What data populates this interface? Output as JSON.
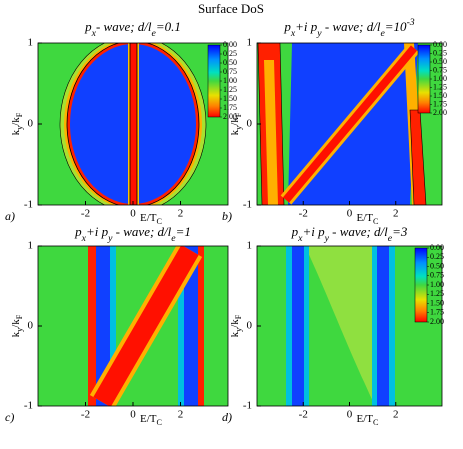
{
  "title": "Surface DoS",
  "panels": [
    {
      "label": "a)",
      "title": [
        {
          "text": "p"
        },
        {
          "text": "x",
          "shift": "sub"
        },
        {
          "text": "- wave; d/l"
        },
        {
          "text": "e",
          "shift": "sub"
        },
        {
          "text": "=0.1"
        }
      ],
      "xlabel": [
        {
          "text": "E/T"
        },
        {
          "text": "C",
          "shift": "sub"
        }
      ],
      "ylabel": [
        {
          "text": "k"
        },
        {
          "text": "y",
          "shift": "sub"
        },
        {
          "text": "/k"
        },
        {
          "text": "F",
          "shift": "sub"
        }
      ],
      "xlim": [
        -4,
        4
      ],
      "ylim": [
        -1,
        1
      ],
      "xticks": [
        -2,
        0,
        2
      ],
      "yticks": [
        -1,
        0,
        1
      ],
      "colorbar": {
        "lim": [
          0,
          2
        ],
        "ticks": [
          {
            "value": 0,
            "label": "0.00"
          },
          {
            "value": 0.25,
            "label": "0.25"
          },
          {
            "value": 0.5,
            "label": "0.50"
          },
          {
            "value": 0.75,
            "label": "0.75"
          },
          {
            "value": 1,
            "label": "1.00"
          },
          {
            "value": 1.25,
            "label": "1.25"
          },
          {
            "value": 1.5,
            "label": "1.50"
          },
          {
            "value": 1.75,
            "label": "1.75"
          },
          {
            "value": 2,
            "label": "2.00"
          }
        ]
      }
    },
    {
      "label": "b)",
      "title": [
        {
          "text": "p"
        },
        {
          "text": "x",
          "shift": "sub"
        },
        {
          "text": "+i p"
        },
        {
          "text": "y",
          "shift": "sub"
        },
        {
          "text": " - wave; d/l"
        },
        {
          "text": "e",
          "shift": "sub"
        },
        {
          "text": "=10"
        },
        {
          "text": "-3",
          "shift": "super"
        }
      ],
      "xlabel": [
        {
          "text": "E/T"
        },
        {
          "text": "C",
          "shift": "sub"
        }
      ],
      "ylabel": [
        {
          "text": "k"
        },
        {
          "text": "y",
          "shift": "sub"
        },
        {
          "text": "/k"
        },
        {
          "text": "F",
          "shift": "sub"
        }
      ],
      "xlim": [
        -4,
        4
      ],
      "ylim": [
        -1,
        1
      ],
      "xticks": [
        -2,
        0,
        2
      ],
      "yticks": [
        -1,
        0,
        1
      ],
      "colorbar": {
        "lim": [
          0,
          2
        ],
        "ticks": [
          {
            "value": 0,
            "label": "0.00"
          },
          {
            "value": 0.25,
            "label": "0.25"
          },
          {
            "value": 0.5,
            "label": "0.50"
          },
          {
            "value": 0.75,
            "label": "0.75"
          },
          {
            "value": 1,
            "label": "1.00"
          },
          {
            "value": 1.25,
            "label": "1.25"
          },
          {
            "value": 1.5,
            "label": "1.50"
          },
          {
            "value": 1.75,
            "label": "1.75"
          },
          {
            "value": 2,
            "label": "2.00"
          }
        ]
      }
    },
    {
      "label": "c)",
      "title": [
        {
          "text": "p"
        },
        {
          "text": "x",
          "shift": "sub"
        },
        {
          "text": "+i p"
        },
        {
          "text": "y",
          "shift": "sub"
        },
        {
          "text": " - wave; d/l"
        },
        {
          "text": "e",
          "shift": "sub"
        },
        {
          "text": "=1"
        }
      ],
      "xlabel": [
        {
          "text": "E/T"
        },
        {
          "text": "C",
          "shift": "sub"
        }
      ],
      "ylabel": [
        {
          "text": "k"
        },
        {
          "text": "y",
          "shift": "sub"
        },
        {
          "text": "/k"
        },
        {
          "text": "F",
          "shift": "sub"
        }
      ],
      "xlim": [
        -4,
        4
      ],
      "ylim": [
        -1,
        1
      ],
      "xticks": [
        -2,
        0,
        2
      ],
      "yticks": [
        -1,
        0,
        1
      ]
    },
    {
      "label": "d)",
      "title": [
        {
          "text": "p"
        },
        {
          "text": "x",
          "shift": "sub"
        },
        {
          "text": "+i p"
        },
        {
          "text": "y",
          "shift": "sub"
        },
        {
          "text": " - wave; d/l"
        },
        {
          "text": "e",
          "shift": "sub"
        },
        {
          "text": "=3"
        }
      ],
      "xlabel": [
        {
          "text": "E/T"
        },
        {
          "text": "C",
          "shift": "sub"
        }
      ],
      "ylabel": [
        {
          "text": "k"
        },
        {
          "text": "y",
          "shift": "sub"
        },
        {
          "text": "/k"
        },
        {
          "text": "F",
          "shift": "sub"
        }
      ],
      "xlim": [
        -4,
        4
      ],
      "ylim": [
        -1,
        1
      ],
      "xticks": [
        -2,
        0,
        2
      ],
      "yticks": [
        -1,
        0,
        1
      ],
      "colorbar": {
        "lim": [
          0,
          2
        ],
        "ticks": [
          {
            "value": 0,
            "label": "0.00"
          },
          {
            "value": 0.25,
            "label": "0.25"
          },
          {
            "value": 0.5,
            "label": "0.50"
          },
          {
            "value": 0.75,
            "label": "0.75"
          },
          {
            "value": 1,
            "label": "1.00"
          },
          {
            "value": 1.25,
            "label": "1.25"
          },
          {
            "value": 1.5,
            "label": "1.50"
          },
          {
            "value": 1.75,
            "label": "1.75"
          },
          {
            "value": 2,
            "label": "2.00"
          }
        ]
      }
    }
  ]
}
